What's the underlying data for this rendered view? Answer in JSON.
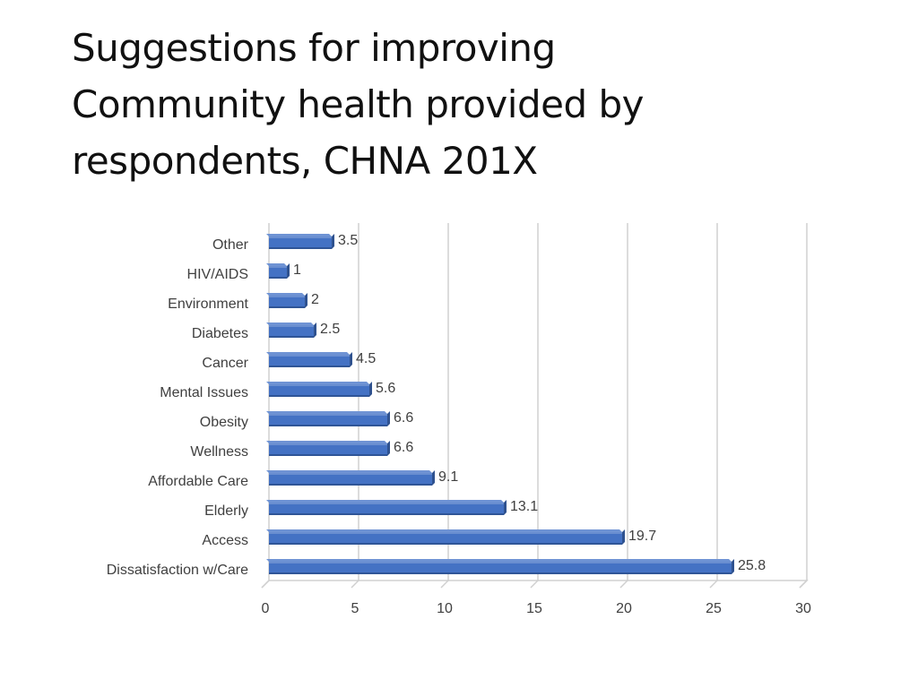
{
  "slide": {
    "title_lines": [
      "Suggestions for improving",
      "Community health provided by",
      "respondents, CHNA 201X"
    ]
  },
  "chart_data": {
    "type": "bar",
    "orientation": "horizontal",
    "style": "3d",
    "bar_color": "#4472C4",
    "grid": true,
    "legend": "none",
    "xlim": [
      0,
      30
    ],
    "x_ticks": [
      0,
      5,
      10,
      15,
      20,
      25,
      30
    ],
    "categories": [
      "Other",
      "HIV/AIDS",
      "Environment",
      "Diabetes",
      "Cancer",
      "Mental Issues",
      "Obesity",
      "Wellness",
      "Affordable Care",
      "Elderly",
      "Access",
      "Dissatisfaction w/Care"
    ],
    "values": [
      3.5,
      1,
      2,
      2.5,
      4.5,
      5.6,
      6.6,
      6.6,
      9.1,
      13.1,
      19.7,
      25.8
    ],
    "data_labels": [
      "3.5",
      "1",
      "2",
      "2.5",
      "4.5",
      "5.6",
      "6.6",
      "6.6",
      "9.1",
      "13.1",
      "19.7",
      "25.8"
    ]
  }
}
